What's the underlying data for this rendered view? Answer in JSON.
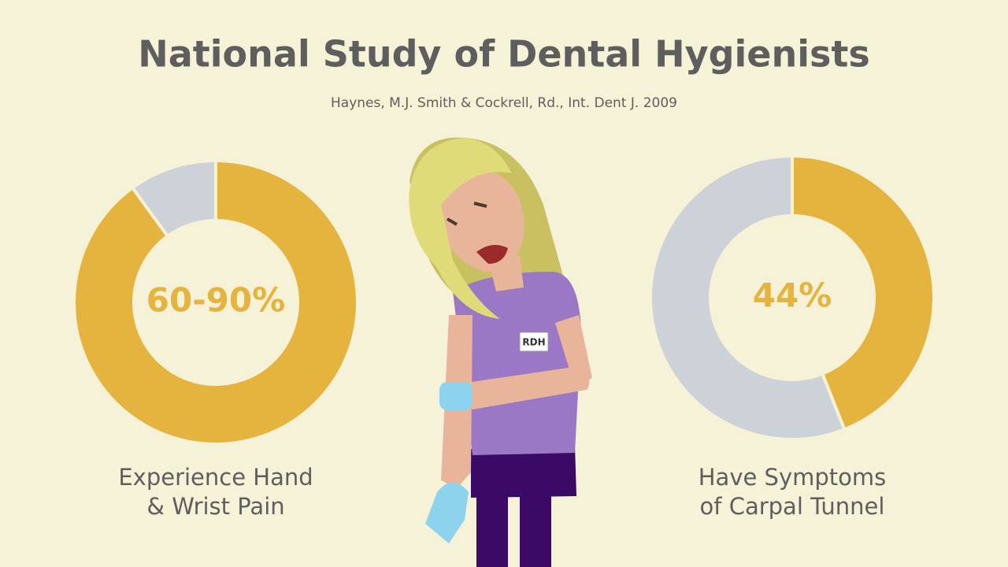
{
  "title": "National Study of Dental Hygienists",
  "subtitle": "Haynes, M.J. Smith & Cockrell, Rd., Int. Dent J. 2009",
  "badge": "RDH",
  "chart_data": [
    {
      "type": "pie",
      "donut": true,
      "values": [
        90,
        10
      ],
      "colors": [
        "#e5b43e",
        "#cdd1d8"
      ],
      "center_label": "60-90%",
      "label_lines": [
        "Experience Hand",
        "& Wrist Pain"
      ]
    },
    {
      "type": "pie",
      "donut": true,
      "values": [
        44,
        56
      ],
      "colors": [
        "#e5b43e",
        "#cdd1d8"
      ],
      "center_label": "44%",
      "label_lines": [
        "Have Symptoms",
        "of Carpal Tunnel"
      ]
    }
  ]
}
